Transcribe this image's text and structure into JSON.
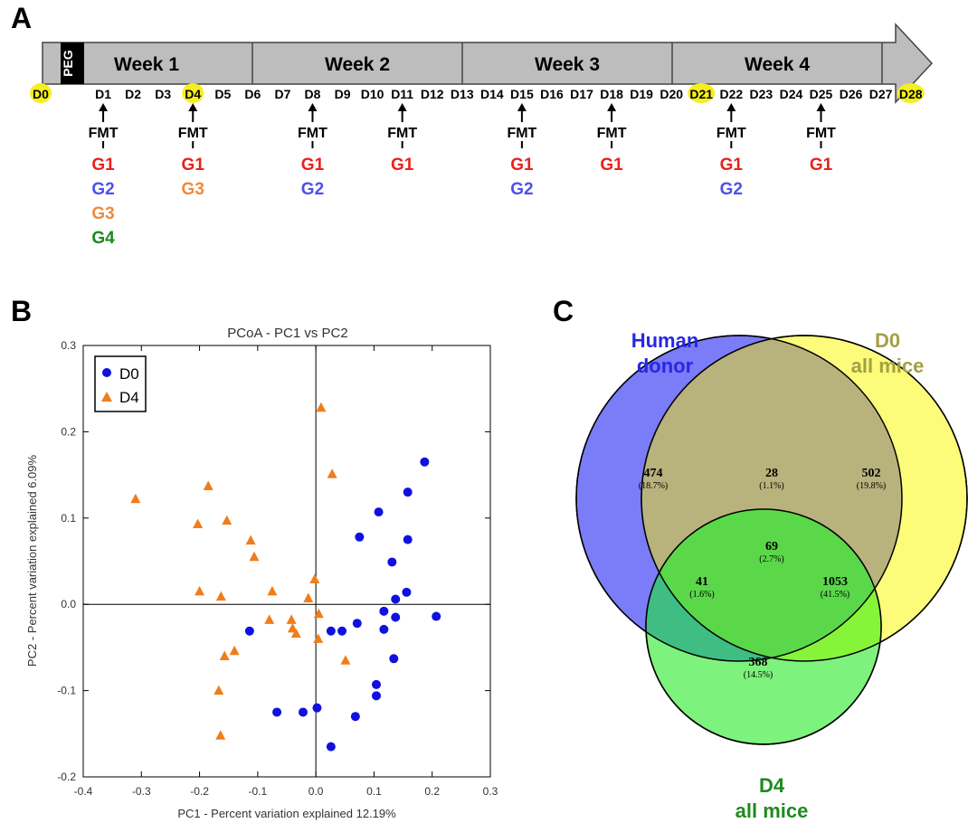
{
  "panel_labels": {
    "a": "A",
    "b": "B",
    "c": "C"
  },
  "timeline": {
    "peg_label": "PEG",
    "weeks": [
      "Week 1",
      "Week 2",
      "Week 3",
      "Week 4"
    ],
    "days": [
      "D0",
      "D1",
      "D2",
      "D3",
      "D4",
      "D5",
      "D6",
      "D7",
      "D8",
      "D9",
      "D10",
      "D11",
      "D12",
      "D13",
      "D14",
      "D15",
      "D16",
      "D17",
      "D18",
      "D19",
      "D20",
      "D21",
      "D22",
      "D23",
      "D24",
      "D25",
      "D26",
      "D27",
      "D28"
    ],
    "highlighted_days": [
      "D0",
      "D4",
      "D21",
      "D28"
    ],
    "highlight_color": "#f5ef1f",
    "fmt_label": "FMT",
    "group_colors": {
      "G1": "#e8221c",
      "G2": "#4d52e8",
      "G3": "#ef8a3c",
      "G4": "#1a8a1a"
    },
    "fmt_events": [
      {
        "day": "D1",
        "groups": [
          "G1",
          "G2",
          "G3",
          "G4"
        ]
      },
      {
        "day": "D4",
        "groups": [
          "G1",
          "G3"
        ]
      },
      {
        "day": "D8",
        "groups": [
          "G1",
          "G2"
        ]
      },
      {
        "day": "D11",
        "groups": [
          "G1"
        ]
      },
      {
        "day": "D15",
        "groups": [
          "G1",
          "G2"
        ]
      },
      {
        "day": "D18",
        "groups": [
          "G1"
        ]
      },
      {
        "day": "D22",
        "groups": [
          "G1",
          "G2"
        ]
      },
      {
        "day": "D25",
        "groups": [
          "G1"
        ]
      }
    ]
  },
  "chart_data": [
    {
      "type": "scatter",
      "title": "PCoA - PC1 vs PC2",
      "xlabel": "PC1 - Percent variation explained 12.19%",
      "ylabel": "PC2 - Percent variation explained 6.09%",
      "xlim": [
        -0.4,
        0.3
      ],
      "ylim": [
        -0.2,
        0.3
      ],
      "xticks": [
        "-0.4",
        "-0.3",
        "-0.2",
        "-0.1",
        "0.0",
        "0.1",
        "0.2",
        "0.3"
      ],
      "yticks": [
        "-0.2",
        "-0.1",
        "0.0",
        "0.1",
        "0.2",
        "0.3"
      ],
      "legend_position": "top-left",
      "series": [
        {
          "name": "D0",
          "marker": "circle",
          "color": "#1010e0",
          "points": [
            [
              0.187,
              0.165
            ],
            [
              0.158,
              0.13
            ],
            [
              0.108,
              0.107
            ],
            [
              0.158,
              0.075
            ],
            [
              0.075,
              0.078
            ],
            [
              0.131,
              0.049
            ],
            [
              0.156,
              0.014
            ],
            [
              0.137,
              0.006
            ],
            [
              0.117,
              -0.008
            ],
            [
              0.137,
              -0.015
            ],
            [
              0.207,
              -0.014
            ],
            [
              0.071,
              -0.022
            ],
            [
              0.117,
              -0.029
            ],
            [
              0.045,
              -0.031
            ],
            [
              0.026,
              -0.031
            ],
            [
              0.134,
              -0.063
            ],
            [
              -0.114,
              -0.031
            ],
            [
              0.104,
              -0.093
            ],
            [
              0.104,
              -0.106
            ],
            [
              0.068,
              -0.13
            ],
            [
              -0.067,
              -0.125
            ],
            [
              -0.022,
              -0.125
            ],
            [
              0.002,
              -0.12
            ],
            [
              0.026,
              -0.165
            ]
          ]
        },
        {
          "name": "D4",
          "marker": "triangle",
          "color": "#f07d1a",
          "points": [
            [
              0.009,
              0.228
            ],
            [
              -0.31,
              0.122
            ],
            [
              -0.185,
              0.137
            ],
            [
              0.028,
              0.151
            ],
            [
              -0.153,
              0.097
            ],
            [
              -0.203,
              0.093
            ],
            [
              -0.112,
              0.074
            ],
            [
              -0.106,
              0.055
            ],
            [
              -0.2,
              0.015
            ],
            [
              -0.163,
              0.009
            ],
            [
              -0.075,
              0.015
            ],
            [
              -0.002,
              0.029
            ],
            [
              -0.013,
              0.007
            ],
            [
              0.005,
              -0.011
            ],
            [
              -0.08,
              -0.018
            ],
            [
              -0.042,
              -0.018
            ],
            [
              -0.04,
              -0.028
            ],
            [
              -0.034,
              -0.034
            ],
            [
              0.004,
              -0.04
            ],
            [
              -0.14,
              -0.054
            ],
            [
              -0.157,
              -0.06
            ],
            [
              0.051,
              -0.065
            ],
            [
              -0.167,
              -0.1
            ],
            [
              -0.164,
              -0.152
            ]
          ]
        }
      ]
    },
    {
      "type": "venn",
      "sets": [
        {
          "name": "Human donor",
          "label_lines": [
            "Human",
            "donor"
          ],
          "color": "#7b7cf7",
          "label_color": "#2727e6"
        },
        {
          "name": "D0 all mice",
          "label_lines": [
            "D0",
            "all mice"
          ],
          "color": "#fcfc7a",
          "label_color": "#a3a046"
        },
        {
          "name": "D4 all mice",
          "label_lines": [
            "D4",
            "all mice"
          ],
          "color": "#7df27d",
          "label_color": "#1e8a1e"
        }
      ],
      "regions": [
        {
          "sets": [
            "Human donor"
          ],
          "value": "474",
          "percent": "(18.7%)"
        },
        {
          "sets": [
            "Human donor",
            "D0 all mice"
          ],
          "value": "28",
          "percent": "(1.1%)"
        },
        {
          "sets": [
            "D0 all mice"
          ],
          "value": "502",
          "percent": "(19.8%)"
        },
        {
          "sets": [
            "Human donor",
            "D0 all mice",
            "D4 all mice"
          ],
          "value": "69",
          "percent": "(2.7%)"
        },
        {
          "sets": [
            "Human donor",
            "D4 all mice"
          ],
          "value": "41",
          "percent": "(1.6%)"
        },
        {
          "sets": [
            "D0 all mice",
            "D4 all mice"
          ],
          "value": "1053",
          "percent": "(41.5%)"
        },
        {
          "sets": [
            "D4 all mice"
          ],
          "value": "368",
          "percent": "(14.5%)"
        }
      ]
    }
  ]
}
